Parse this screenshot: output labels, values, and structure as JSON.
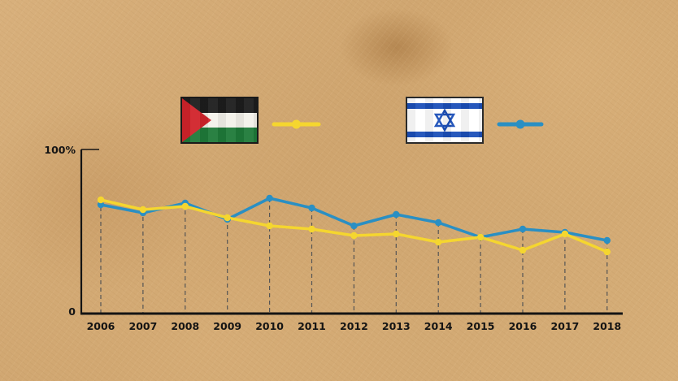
{
  "chart_data": {
    "type": "line",
    "x": [
      2006,
      2007,
      2008,
      2009,
      2010,
      2011,
      2012,
      2013,
      2014,
      2015,
      2016,
      2017,
      2018
    ],
    "x_tick_labels": [
      "2006",
      "2007",
      "2008",
      "2009",
      "2010",
      "2011",
      "2012",
      "2013",
      "2014",
      "2015",
      "2016",
      "2017",
      "2018"
    ],
    "y_tick_labels": [
      "100%",
      "0"
    ],
    "ylim": [
      0,
      100
    ],
    "grid": "dashed vertical drop lines at each year",
    "legend": "top, flag icons with line swatches",
    "series": [
      {
        "flag": "palestine-flag",
        "color": "#f5d62f",
        "values": [
          69,
          63,
          65,
          58,
          53,
          51,
          47,
          48,
          43,
          46,
          38,
          48,
          37
        ]
      },
      {
        "flag": "israel-flag",
        "color": "#2a8fc3",
        "values": [
          66,
          61,
          67,
          57,
          70,
          64,
          53,
          60,
          55,
          46,
          51,
          49,
          44
        ]
      }
    ],
    "colors": {
      "axis": "#141414",
      "dashes": "#555555",
      "tick_text": "#141414"
    }
  }
}
